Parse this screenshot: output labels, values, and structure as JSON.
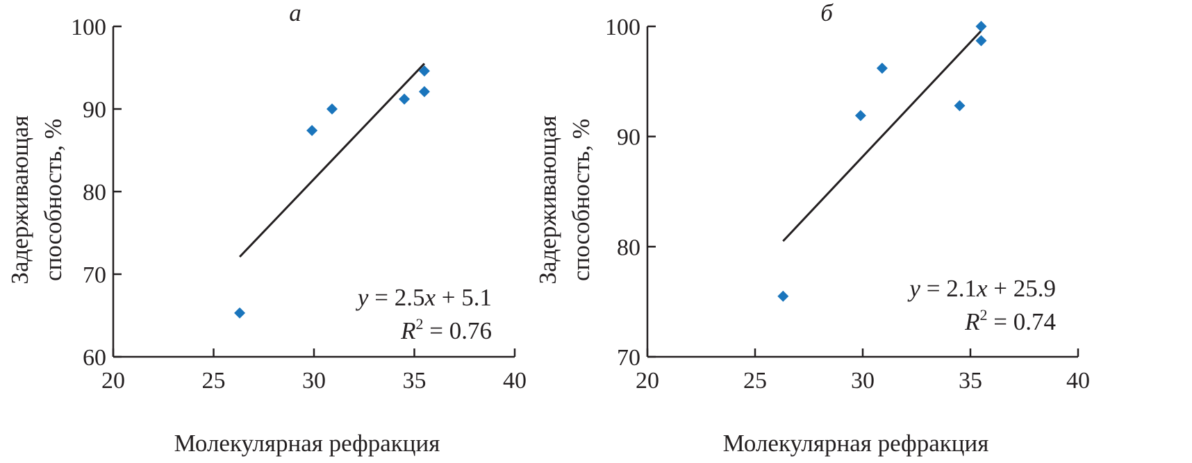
{
  "chart_data": [
    {
      "type": "scatter",
      "panel_label": "а",
      "xlabel": "Молекулярная рефракция",
      "ylabel_lines": [
        "Задерживающая",
        "способность, %"
      ],
      "xlim": [
        20,
        40
      ],
      "ylim": [
        60,
        100
      ],
      "xticks": [
        "20",
        "25",
        "30",
        "35",
        "40"
      ],
      "yticks": [
        "60",
        "70",
        "80",
        "90",
        "100"
      ],
      "series": [
        {
          "name": "data",
          "marker": "diamond",
          "color": "#1a75bc",
          "x": [
            26.3,
            29.9,
            30.9,
            34.5,
            35.5,
            35.5
          ],
          "y": [
            65.3,
            87.4,
            90.0,
            91.2,
            94.6,
            92.1
          ]
        }
      ],
      "trendline": {
        "x": [
          26.3,
          35.5
        ],
        "y": [
          72.1,
          95.5
        ],
        "color": "#231f20"
      },
      "equation": {
        "y_var": "y",
        "rest": " = 2.5",
        "x_var": "x",
        "tail": " + 5.1"
      },
      "r2": {
        "r": "R",
        "sup": "2",
        "value": " = 0.76"
      }
    },
    {
      "type": "scatter",
      "panel_label": "б",
      "xlabel": "Молекулярная рефракция",
      "ylabel_lines": [
        "Задерживающая",
        "способность, %"
      ],
      "xlim": [
        20,
        40
      ],
      "ylim": [
        70,
        100
      ],
      "xticks": [
        "20",
        "25",
        "30",
        "35",
        "40"
      ],
      "yticks": [
        "70",
        "80",
        "90",
        "100"
      ],
      "series": [
        {
          "name": "data",
          "marker": "diamond",
          "color": "#1a75bc",
          "x": [
            26.3,
            29.9,
            30.9,
            34.5,
            35.5,
            35.5
          ],
          "y": [
            75.5,
            91.9,
            96.2,
            92.8,
            100.0,
            98.7
          ]
        }
      ],
      "trendline": {
        "x": [
          26.3,
          35.5
        ],
        "y": [
          80.5,
          99.6
        ],
        "color": "#231f20"
      },
      "equation": {
        "y_var": "y",
        "rest": " = 2.1",
        "x_var": "x",
        "tail": " + 25.9"
      },
      "r2": {
        "r": "R",
        "sup": "2",
        "value": " = 0.74"
      }
    }
  ]
}
